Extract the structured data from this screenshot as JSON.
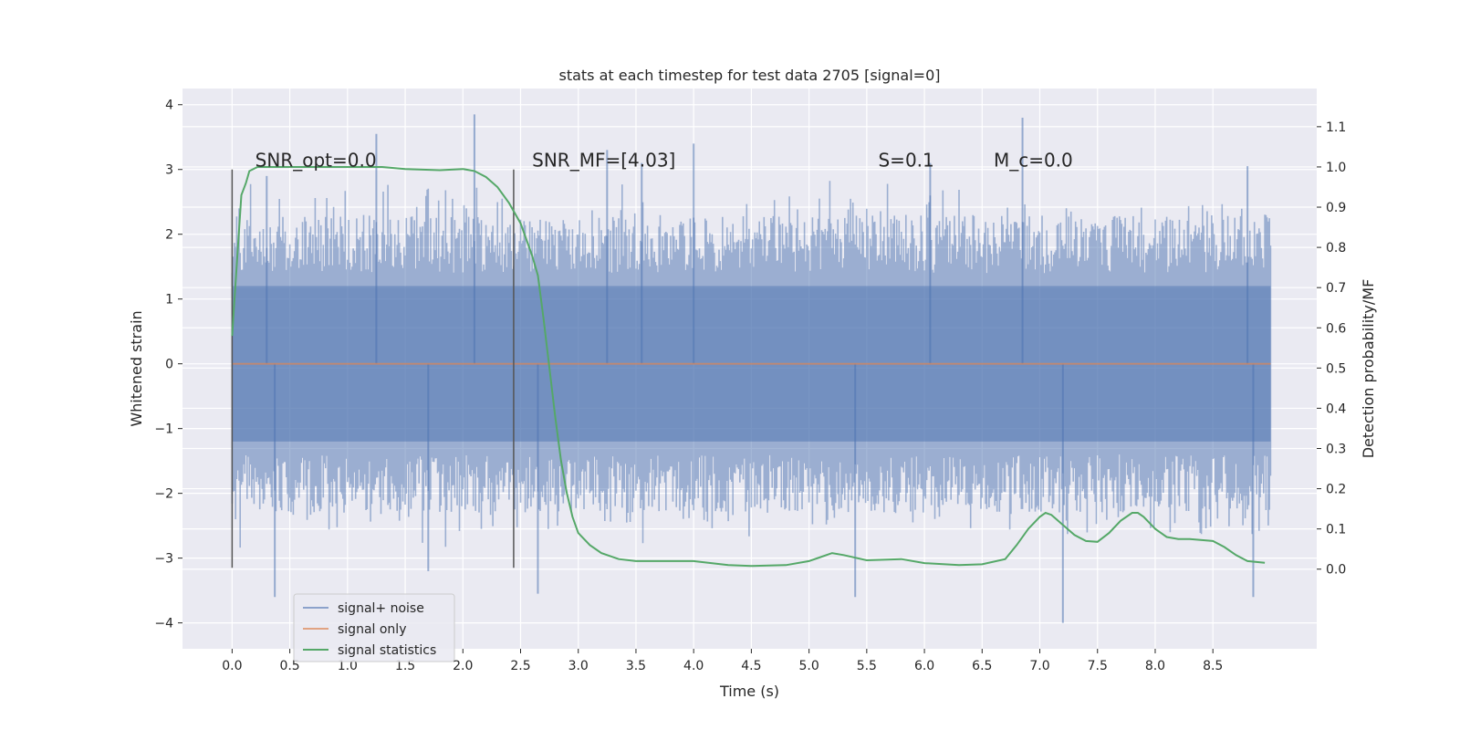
{
  "chart_data": {
    "type": "line",
    "title": "stats at each timestep for test data 2705 [signal=0]",
    "xlabel": "Time (s)",
    "ylabel": "Whitened strain",
    "y2label": "Detection probability/MF",
    "xlim": [
      -0.43,
      9.4
    ],
    "ylim": [
      -4.4,
      4.25
    ],
    "y2lim": [
      -0.198,
      1.195
    ],
    "xticks": [
      "0.0",
      "0.5",
      "1.0",
      "1.5",
      "2.0",
      "2.5",
      "3.0",
      "3.5",
      "4.0",
      "4.5",
      "5.0",
      "5.5",
      "6.0",
      "6.5",
      "7.0",
      "7.5",
      "8.0",
      "8.5"
    ],
    "yticks": [
      "4",
      "3",
      "2",
      "1",
      "0",
      "−1",
      "−2",
      "−3",
      "−4"
    ],
    "y2ticks": [
      "1.1",
      "1.0",
      "0.9",
      "0.8",
      "0.7",
      "0.6",
      "0.5",
      "0.4",
      "0.3",
      "0.2",
      "0.1",
      "0.0"
    ],
    "grid": true,
    "legend_position": "lower-left",
    "colors": {
      "noise": "#4c72b0",
      "signal": "#dd8452",
      "stats": "#55a868",
      "background": "#eaeaf2",
      "grid": "#ffffff",
      "vline": "#555555"
    },
    "annotations": [
      {
        "text": "SNR_opt=0.0",
        "x": 0.2,
        "y": 3.1
      },
      {
        "text": "SNR_MF=[4.03]",
        "x": 2.6,
        "y": 3.1
      },
      {
        "text": "S=0.1",
        "x": 5.6,
        "y": 3.1
      },
      {
        "text": "M_c=0.0",
        "x": 6.6,
        "y": 3.1
      }
    ],
    "vlines": [
      {
        "x": 0.0,
        "ymin": -3.15,
        "ymax": 3.0
      },
      {
        "x": 2.44,
        "ymin": -3.15,
        "ymax": 3.0
      }
    ],
    "series": [
      {
        "name": "signal+ noise",
        "kind": "noise-band",
        "x_start": 0.0,
        "x_end": 9.0,
        "core_range": [
          -1.2,
          1.2
        ],
        "peaks_up": [
          {
            "x": 0.3,
            "y": 2.9
          },
          {
            "x": 1.25,
            "y": 3.55
          },
          {
            "x": 2.1,
            "y": 3.85
          },
          {
            "x": 3.25,
            "y": 3.3
          },
          {
            "x": 3.55,
            "y": 3.1
          },
          {
            "x": 4.0,
            "y": 3.4
          },
          {
            "x": 6.05,
            "y": 3.1
          },
          {
            "x": 6.85,
            "y": 3.8
          },
          {
            "x": 8.8,
            "y": 3.05
          }
        ],
        "peaks_down": [
          {
            "x": 0.37,
            "y": -3.6
          },
          {
            "x": 1.7,
            "y": -3.2
          },
          {
            "x": 2.65,
            "y": -3.55
          },
          {
            "x": 5.4,
            "y": -3.6
          },
          {
            "x": 7.2,
            "y": -4.0
          },
          {
            "x": 8.85,
            "y": -3.6
          }
        ]
      },
      {
        "name": "signal only",
        "kind": "line",
        "x": [
          0.0,
          9.0
        ],
        "y": [
          0.0,
          0.0
        ]
      },
      {
        "name": "signal statistics",
        "kind": "line",
        "axis": "y2",
        "x": [
          0.0,
          0.05,
          0.08,
          0.12,
          0.15,
          0.22,
          0.3,
          0.5,
          0.8,
          1.0,
          1.3,
          1.5,
          1.8,
          2.0,
          2.1,
          2.2,
          2.3,
          2.4,
          2.5,
          2.6,
          2.65,
          2.7,
          2.75,
          2.8,
          2.85,
          2.9,
          2.95,
          3.0,
          3.1,
          3.2,
          3.35,
          3.5,
          3.7,
          4.0,
          4.3,
          4.5,
          4.8,
          5.0,
          5.1,
          5.2,
          5.3,
          5.5,
          5.8,
          6.0,
          6.3,
          6.5,
          6.7,
          6.8,
          6.9,
          7.0,
          7.05,
          7.1,
          7.2,
          7.3,
          7.4,
          7.5,
          7.6,
          7.7,
          7.8,
          7.85,
          7.9,
          8.0,
          8.1,
          8.2,
          8.3,
          8.5,
          8.6,
          8.7,
          8.8,
          8.95
        ],
        "y": [
          0.58,
          0.8,
          0.93,
          0.96,
          0.99,
          1.0,
          1.0,
          1.0,
          1.0,
          1.0,
          1.0,
          0.995,
          0.992,
          0.995,
          0.99,
          0.975,
          0.95,
          0.91,
          0.86,
          0.78,
          0.73,
          0.62,
          0.5,
          0.38,
          0.27,
          0.19,
          0.13,
          0.09,
          0.06,
          0.04,
          0.025,
          0.02,
          0.02,
          0.02,
          0.01,
          0.008,
          0.01,
          0.02,
          0.03,
          0.04,
          0.035,
          0.022,
          0.025,
          0.015,
          0.01,
          0.012,
          0.025,
          0.06,
          0.1,
          0.13,
          0.14,
          0.135,
          0.11,
          0.085,
          0.07,
          0.068,
          0.09,
          0.12,
          0.14,
          0.14,
          0.13,
          0.1,
          0.08,
          0.075,
          0.075,
          0.07,
          0.055,
          0.035,
          0.02,
          0.016
        ]
      }
    ]
  }
}
